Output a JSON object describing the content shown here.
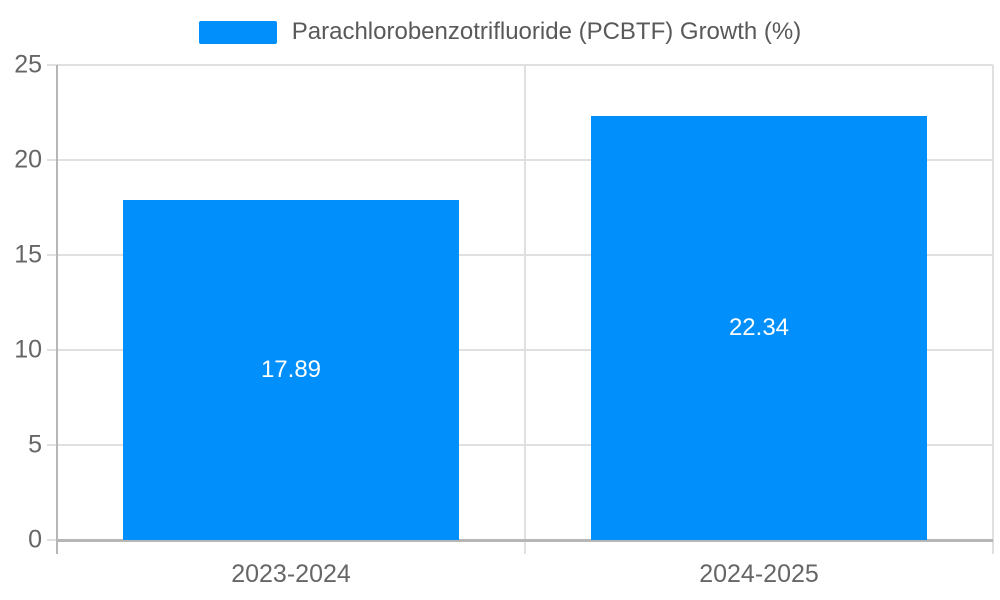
{
  "legend": {
    "label": "Parachlorobenzotrifluoride (PCBTF) Growth (%)"
  },
  "colors": {
    "bar": "#008FFB",
    "grid": "#e0e0e0",
    "axis": "#b6b6b6",
    "tick_label": "#666666",
    "legend_text": "#58595b",
    "data_label": "#ffffff",
    "background": "#ffffff"
  },
  "chart_data": {
    "type": "bar",
    "title": "",
    "categories": [
      "2023-2024",
      "2024-2025"
    ],
    "series": [
      {
        "name": "Parachlorobenzotrifluoride (PCBTF) Growth (%)",
        "values": [
          17.89,
          22.34
        ]
      }
    ],
    "data_labels": [
      "17.89",
      "22.34"
    ],
    "xlabel": "",
    "ylabel": "",
    "ylim": [
      0,
      25
    ],
    "yticks": [
      0,
      5,
      10,
      15,
      20,
      25
    ],
    "grid": true,
    "legend_position": "top",
    "bar_band_fraction": 0.72
  }
}
